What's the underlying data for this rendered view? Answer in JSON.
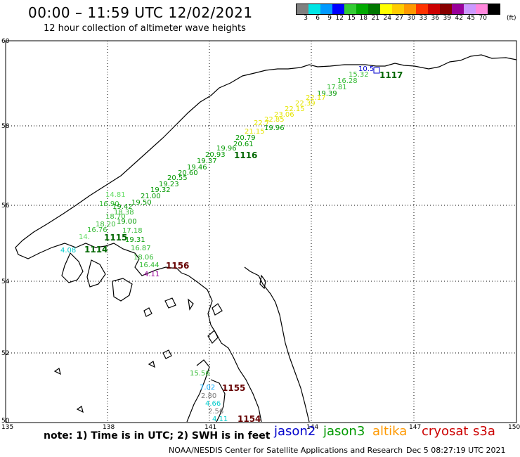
{
  "header": {
    "title": "00:00 – 11:59 UTC 12/02/2021",
    "subtitle": "12 hour collection of altimeter wave heights"
  },
  "legend": {
    "colors": [
      "#808080",
      "#00e5e5",
      "#0099ff",
      "#0000ff",
      "#33cc33",
      "#00aa00",
      "#007700",
      "#ffff00",
      "#ffcc00",
      "#ff9900",
      "#ff3300",
      "#cc0000",
      "#880000",
      "#990099",
      "#cc99ff",
      "#ff88dd",
      "#000000"
    ],
    "labels": [
      "3",
      "6",
      "9",
      "12",
      "15",
      "18",
      "21",
      "24",
      "27",
      "30",
      "33",
      "36",
      "39",
      "42",
      "45",
      "70"
    ],
    "unit": "(ft)"
  },
  "axes": {
    "lon_labels": [
      "135",
      "138",
      "141",
      "144",
      "147",
      "150"
    ],
    "lat_labels": [
      "60",
      "58",
      "56",
      "54",
      "52",
      "50"
    ]
  },
  "orbits": [
    {
      "label": "1117",
      "color": "#006600"
    },
    {
      "label": "1116",
      "color": "#006600"
    },
    {
      "label": "1115",
      "color": "#006600"
    },
    {
      "label": "1114",
      "color": "#006600"
    },
    {
      "label": "1156",
      "color": "#660000"
    },
    {
      "label": "1155",
      "color": "#660000"
    },
    {
      "label": "1154",
      "color": "#660000"
    }
  ],
  "observations": [
    {
      "text": "10.5",
      "color": "#0000cc"
    },
    {
      "text": "15.32",
      "color": "#33bb33"
    },
    {
      "text": "16.28",
      "color": "#33bb33"
    },
    {
      "text": "17.81",
      "color": "#33bb33"
    },
    {
      "text": "19.39",
      "color": "#009900"
    },
    {
      "text": "22.17",
      "color": "#e5e500"
    },
    {
      "text": "22.39",
      "color": "#e5e500"
    },
    {
      "text": "22.15",
      "color": "#e5e500"
    },
    {
      "text": "23.06",
      "color": "#e5e500"
    },
    {
      "text": "22.85",
      "color": "#e5e500"
    },
    {
      "text": "22.7",
      "color": "#e5e500"
    },
    {
      "text": "19.96",
      "color": "#009900"
    },
    {
      "text": "21.15",
      "color": "#e5e500"
    },
    {
      "text": "20.79",
      "color": "#009900"
    },
    {
      "text": "20.61",
      "color": "#009900"
    },
    {
      "text": "19.96",
      "color": "#009900"
    },
    {
      "text": "20.93",
      "color": "#009900"
    },
    {
      "text": "19.37",
      "color": "#009900"
    },
    {
      "text": "19.46",
      "color": "#009900"
    },
    {
      "text": "20.60",
      "color": "#009900"
    },
    {
      "text": "20.55",
      "color": "#009900"
    },
    {
      "text": "19.23",
      "color": "#009900"
    },
    {
      "text": "19.32",
      "color": "#009900"
    },
    {
      "text": "14.81",
      "color": "#66dd66"
    },
    {
      "text": "21.00",
      "color": "#009900"
    },
    {
      "text": "16.90",
      "color": "#33bb33"
    },
    {
      "text": "19.50",
      "color": "#009900"
    },
    {
      "text": "19.42",
      "color": "#009900"
    },
    {
      "text": "18.38",
      "color": "#33bb33"
    },
    {
      "text": "18.70",
      "color": "#33bb33"
    },
    {
      "text": "18.20",
      "color": "#33bb33"
    },
    {
      "text": "19.00",
      "color": "#009900"
    },
    {
      "text": "16.76",
      "color": "#33bb33"
    },
    {
      "text": "17.18",
      "color": "#33bb33"
    },
    {
      "text": "14.",
      "color": "#66dd66"
    },
    {
      "text": "19.31",
      "color": "#009900"
    },
    {
      "text": "4.08",
      "color": "#00cccc"
    },
    {
      "text": "16.87",
      "color": "#33bb33"
    },
    {
      "text": "18.06",
      "color": "#33bb33"
    },
    {
      "text": "16.44",
      "color": "#33bb33"
    },
    {
      "text": "4.11",
      "color": "#990099"
    },
    {
      "text": "15.56",
      "color": "#33bb33"
    },
    {
      "text": "7.02",
      "color": "#00aaff"
    },
    {
      "text": "2.80",
      "color": "#777777"
    },
    {
      "text": "4.66",
      "color": "#00cccc"
    },
    {
      "text": "2.56",
      "color": "#777777"
    },
    {
      "text": "4.11",
      "color": "#00cccc"
    }
  ],
  "footer": {
    "note": "note: 1) Time is in UTC; 2) SWH is in feet",
    "satellites": [
      {
        "name": "jason2",
        "color": "#0000cc"
      },
      {
        "name": "jason3",
        "color": "#009900"
      },
      {
        "name": "altika",
        "color": "#ff9900"
      },
      {
        "name": "cryosat",
        "color": "#cc0000"
      },
      {
        "name": "s3a",
        "color": "#cc0000"
      }
    ],
    "credit": "NOAA/NESDIS Center for Satellite Applications and Research",
    "timestamp": "Dec  5 08:27:19 UTC 2021"
  }
}
